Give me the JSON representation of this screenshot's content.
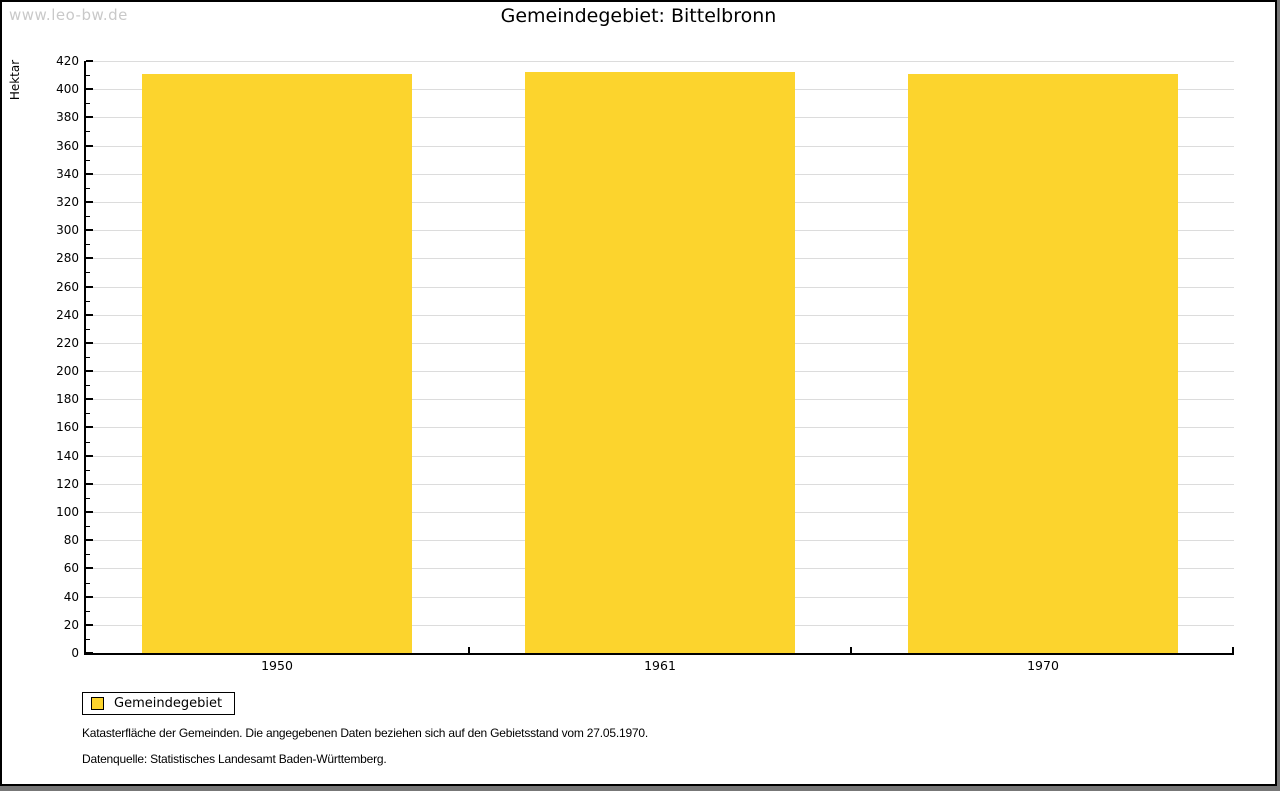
{
  "page": {
    "watermark": "www.leo-bw.de"
  },
  "chart_data": {
    "type": "bar",
    "title": "Gemeindegebiet: Bittelbronn",
    "xlabel": "",
    "ylabel": "Hektar",
    "categories": [
      "1950",
      "1961",
      "1970"
    ],
    "series": [
      {
        "name": "Gemeindegebiet",
        "values": [
          411,
          412,
          411
        ]
      }
    ],
    "ylim": [
      0,
      420
    ],
    "ytick_step": 20,
    "yminor_step": 10,
    "ytick_labels": [
      "0",
      "20",
      "40",
      "60",
      "80",
      "100",
      "120",
      "140",
      "160",
      "180",
      "200",
      "220",
      "240",
      "260",
      "280",
      "300",
      "320",
      "340",
      "360",
      "380",
      "400",
      "420"
    ],
    "grid": "horizontal major gridlines on",
    "legend_position": "bottom-left outside plot",
    "bar_color": "#FCD42D",
    "gridline_color": "#DCDCDC"
  },
  "legend": {
    "items": [
      {
        "label": "Gemeindegebiet",
        "color": "#FCD42D"
      }
    ]
  },
  "footer": {
    "line1": "Katasterfläche der Gemeinden. Die angegebenen Daten beziehen sich auf den Gebietsstand vom 27.05.1970.",
    "line2": "Datenquelle: Statistisches Landesamt Baden-Württemberg."
  }
}
